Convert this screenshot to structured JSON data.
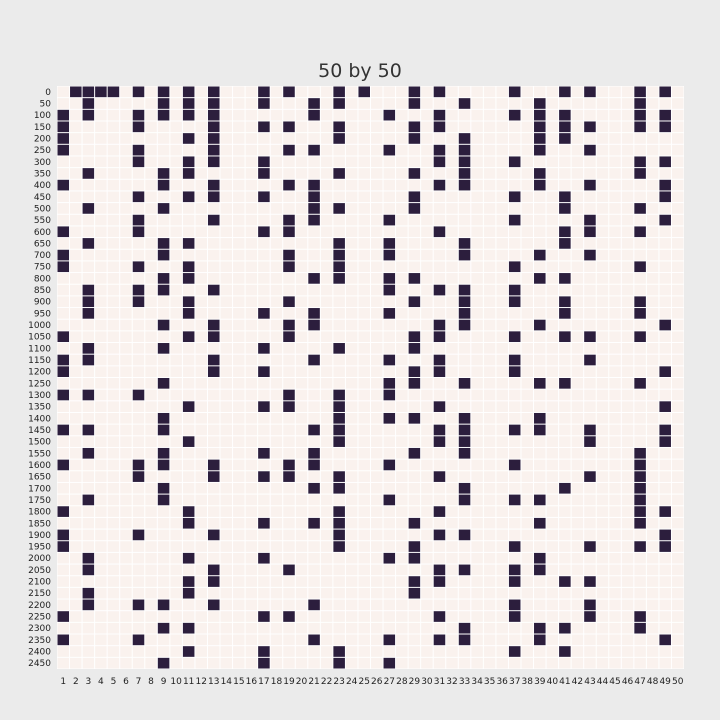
{
  "chart_data": {
    "type": "heatmap",
    "title": "50 by 50",
    "xlabel": "",
    "ylabel": "",
    "x_ticks": [
      "1",
      "2",
      "3",
      "4",
      "5",
      "6",
      "7",
      "8",
      "9",
      "10",
      "11",
      "12",
      "13",
      "14",
      "15",
      "16",
      "17",
      "18",
      "19",
      "20",
      "21",
      "22",
      "23",
      "24",
      "25",
      "26",
      "27",
      "28",
      "29",
      "30",
      "31",
      "32",
      "33",
      "34",
      "35",
      "36",
      "37",
      "38",
      "39",
      "40",
      "41",
      "42",
      "43",
      "44",
      "45",
      "46",
      "47",
      "48",
      "49",
      "50"
    ],
    "y_ticks": [
      "0",
      "50",
      "100",
      "150",
      "200",
      "250",
      "300",
      "350",
      "400",
      "450",
      "500",
      "550",
      "600",
      "650",
      "700",
      "750",
      "800",
      "850",
      "900",
      "950",
      "1000",
      "1050",
      "1100",
      "1150",
      "1200",
      "1250",
      "1300",
      "1350",
      "1400",
      "1450",
      "1500",
      "1550",
      "1600",
      "1650",
      "1700",
      "1750",
      "1800",
      "1850",
      "1900",
      "1950",
      "2000",
      "2050",
      "2100",
      "2150",
      "2200",
      "2250",
      "2300",
      "2350",
      "2400",
      "2450"
    ],
    "cell_values": [
      0,
      1
    ],
    "colors": {
      "0": "#faf2ee",
      "1": "#2c1e3d",
      "background": "#ebebeb",
      "gridline": "#ffffff"
    },
    "grid": true,
    "legend": "none",
    "filled_cells_by_row": [
      [
        2,
        3,
        4,
        5,
        7,
        9,
        11,
        13,
        17,
        19,
        23,
        25,
        29,
        31,
        37,
        41,
        43,
        47,
        49
      ],
      [
        3,
        9,
        11,
        13,
        17,
        21,
        23,
        29,
        33,
        39,
        47
      ],
      [
        1,
        3,
        7,
        9,
        11,
        13,
        21,
        27,
        31,
        37,
        39,
        41,
        47,
        49
      ],
      [
        1,
        7,
        13,
        17,
        19,
        23,
        29,
        31,
        39,
        41,
        43,
        47,
        49
      ],
      [
        1,
        11,
        13,
        23,
        29,
        33,
        39,
        41
      ],
      [
        1,
        7,
        13,
        19,
        21,
        27,
        31,
        33,
        39,
        43
      ],
      [
        7,
        11,
        13,
        17,
        31,
        33,
        37,
        47,
        49
      ],
      [
        3,
        9,
        11,
        17,
        23,
        29,
        33,
        39,
        47
      ],
      [
        1,
        9,
        13,
        19,
        21,
        31,
        33,
        39,
        43,
        49
      ],
      [
        7,
        11,
        13,
        17,
        21,
        29,
        37,
        41,
        49
      ],
      [
        3,
        9,
        21,
        23,
        29,
        41,
        47
      ],
      [
        7,
        13,
        19,
        21,
        27,
        37,
        43,
        49
      ],
      [
        1,
        7,
        17,
        19,
        31,
        41,
        43,
        47
      ],
      [
        3,
        9,
        11,
        23,
        27,
        33,
        41
      ],
      [
        1,
        9,
        19,
        23,
        27,
        33,
        39,
        43
      ],
      [
        1,
        7,
        11,
        19,
        23,
        37,
        47
      ],
      [
        9,
        11,
        21,
        23,
        27,
        29,
        39,
        41
      ],
      [
        3,
        7,
        9,
        13,
        27,
        31,
        33,
        37
      ],
      [
        3,
        7,
        11,
        19,
        29,
        33,
        37,
        41,
        47
      ],
      [
        3,
        11,
        17,
        21,
        27,
        33,
        41,
        47
      ],
      [
        9,
        13,
        19,
        21,
        31,
        33,
        39,
        49
      ],
      [
        1,
        11,
        13,
        19,
        29,
        31,
        37,
        41,
        43,
        47
      ],
      [
        3,
        9,
        17,
        23,
        29
      ],
      [
        1,
        3,
        13,
        21,
        27,
        31,
        37,
        43
      ],
      [
        1,
        13,
        17,
        29,
        31,
        37,
        49
      ],
      [
        9,
        27,
        29,
        33,
        39,
        41,
        47
      ],
      [
        1,
        3,
        7,
        19,
        23,
        27
      ],
      [
        11,
        17,
        19,
        23,
        31,
        49
      ],
      [
        9,
        23,
        27,
        29,
        33,
        39
      ],
      [
        1,
        3,
        9,
        21,
        23,
        31,
        33,
        37,
        39,
        43,
        49
      ],
      [
        11,
        23,
        31,
        33,
        43,
        49
      ],
      [
        3,
        9,
        17,
        21,
        29,
        33,
        47
      ],
      [
        1,
        7,
        9,
        13,
        19,
        21,
        27,
        37,
        47
      ],
      [
        7,
        13,
        17,
        19,
        23,
        31,
        43,
        47
      ],
      [
        9,
        21,
        23,
        33,
        41,
        47
      ],
      [
        3,
        9,
        27,
        33,
        37,
        39,
        47
      ],
      [
        1,
        11,
        23,
        31,
        47,
        49
      ],
      [
        11,
        17,
        21,
        23,
        29,
        39,
        47
      ],
      [
        1,
        7,
        13,
        23,
        31,
        33,
        49
      ],
      [
        1,
        23,
        29,
        37,
        43,
        47,
        49
      ],
      [
        3,
        11,
        17,
        27,
        29,
        39
      ],
      [
        3,
        13,
        19,
        31,
        33,
        37,
        39
      ],
      [
        11,
        13,
        29,
        31,
        37,
        41,
        43
      ],
      [
        3,
        11,
        29
      ],
      [
        3,
        7,
        9,
        13,
        21,
        37,
        43
      ],
      [
        1,
        17,
        19,
        31,
        37,
        43,
        47
      ],
      [
        9,
        11,
        33,
        39,
        41,
        47
      ],
      [
        1,
        7,
        21,
        27,
        31,
        33,
        39,
        49
      ],
      [
        11,
        17,
        23,
        37,
        41
      ],
      [
        9,
        17,
        23,
        27
      ]
    ]
  }
}
